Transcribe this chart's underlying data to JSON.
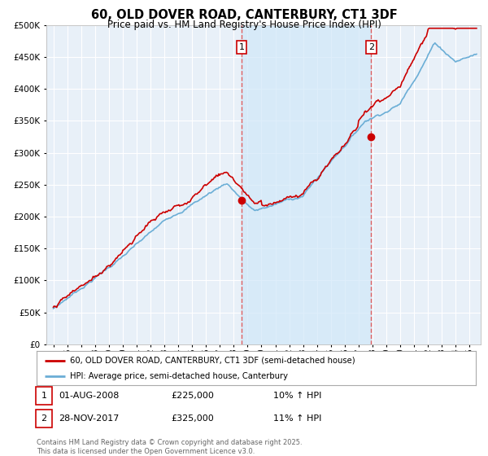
{
  "title": "60, OLD DOVER ROAD, CANTERBURY, CT1 3DF",
  "subtitle": "Price paid vs. HM Land Registry's House Price Index (HPI)",
  "ytick_values": [
    0,
    50000,
    100000,
    150000,
    200000,
    250000,
    300000,
    350000,
    400000,
    450000,
    500000
  ],
  "ylim": [
    0,
    500000
  ],
  "xlim_start": 1994.5,
  "xlim_end": 2025.8,
  "xtick_years": [
    1995,
    1996,
    1997,
    1998,
    1999,
    2000,
    2001,
    2002,
    2003,
    2004,
    2005,
    2006,
    2007,
    2008,
    2009,
    2010,
    2011,
    2012,
    2013,
    2014,
    2015,
    2016,
    2017,
    2018,
    2019,
    2020,
    2021,
    2022,
    2023,
    2024,
    2025
  ],
  "hpi_color": "#6baed6",
  "price_color": "#cc0000",
  "vline1_x": 2008.58,
  "vline2_x": 2017.91,
  "vline_color": "#e06060",
  "shade_color": "#d0e8f8",
  "annotation1_label": "1",
  "annotation2_label": "2",
  "sale1_price": 225000,
  "sale2_price": 325000,
  "sale1_year": 2008.58,
  "sale2_year": 2017.91,
  "legend_line1": "60, OLD DOVER ROAD, CANTERBURY, CT1 3DF (semi-detached house)",
  "legend_line2": "HPI: Average price, semi-detached house, Canterbury",
  "table_row1": [
    "1",
    "01-AUG-2008",
    "£225,000",
    "10% ↑ HPI"
  ],
  "table_row2": [
    "2",
    "28-NOV-2017",
    "£325,000",
    "11% ↑ HPI"
  ],
  "footnote": "Contains HM Land Registry data © Crown copyright and database right 2025.\nThis data is licensed under the Open Government Licence v3.0.",
  "bg_color": "#ffffff",
  "plot_bg_color": "#e8f0f8",
  "grid_color": "#ffffff"
}
